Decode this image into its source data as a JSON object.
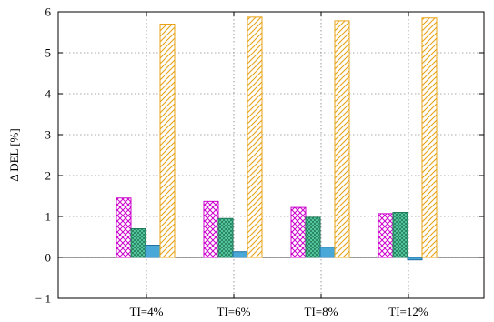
{
  "chart_data": {
    "type": "bar",
    "title": "",
    "xlabel": "",
    "ylabel": "Δ DEL [%]",
    "ylim": [
      -1,
      6
    ],
    "yticks": [
      -1,
      0,
      1,
      2,
      3,
      4,
      5,
      6
    ],
    "ytick_labels": [
      "− 1",
      "0",
      "1",
      "2",
      "3",
      "4",
      "5",
      "6"
    ],
    "categories": [
      "TI=4%",
      "TI=6%",
      "TI=8%",
      "TI=12%"
    ],
    "grid": true,
    "legend": "none",
    "series": [
      {
        "values": [
          1.45,
          1.37,
          1.22,
          1.07
        ],
        "color": "#cc00cc",
        "pattern": "crosshatch"
      },
      {
        "values": [
          0.7,
          0.95,
          0.98,
          1.1
        ],
        "color": "#1f7a5a",
        "fill": "#5fd3a8",
        "pattern": "dense-crosshatch"
      },
      {
        "values": [
          0.3,
          0.14,
          0.25,
          -0.06
        ],
        "color": "#1f6fa0",
        "fill": "#4aa8d8",
        "pattern": "solid"
      },
      {
        "values": [
          5.7,
          5.87,
          5.78,
          5.85
        ],
        "color": "#e8a317",
        "pattern": "diagonal"
      }
    ]
  }
}
